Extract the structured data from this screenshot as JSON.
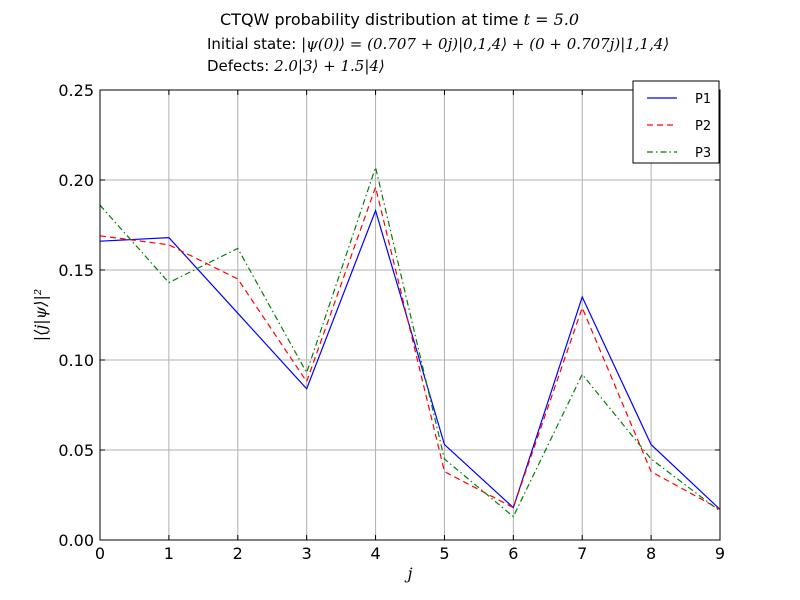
{
  "titles": {
    "main_prefix": "CTQW probability distribution at time ",
    "main_math": "t = 5.0",
    "state_prefix": "Initial state: ",
    "state_math": "|ψ(0)⟩ = (0.707 + 0j)|0,1,4⟩ + (0 + 0.707j)|1,1,4⟩",
    "defects_prefix": "Defects: ",
    "defects_math": "2.0|3⟩ + 1.5|4⟩"
  },
  "chart_data": {
    "type": "line",
    "x": [
      0,
      1,
      2,
      3,
      4,
      5,
      6,
      7,
      8,
      9
    ],
    "xlabel": "j",
    "ylabel": "|⟨j|ψ⟩|²",
    "xlim": [
      0,
      9
    ],
    "ylim": [
      0,
      0.25
    ],
    "xticks": [
      "0",
      "1",
      "2",
      "3",
      "4",
      "5",
      "6",
      "7",
      "8",
      "9"
    ],
    "yticks": [
      "0.00",
      "0.05",
      "0.10",
      "0.15",
      "0.20",
      "0.25"
    ],
    "grid": true,
    "legend_position": "top-right",
    "series": [
      {
        "name": "P1",
        "color": "#0000ff",
        "style": "solid",
        "values": [
          0.166,
          0.168,
          0.126,
          0.084,
          0.183,
          0.053,
          0.018,
          0.135,
          0.053,
          0.017
        ]
      },
      {
        "name": "P2",
        "color": "#ff0000",
        "style": "dashed",
        "values": [
          0.169,
          0.164,
          0.145,
          0.088,
          0.196,
          0.038,
          0.018,
          0.129,
          0.038,
          0.017
        ]
      },
      {
        "name": "P3",
        "color": "#008000",
        "style": "dashdot",
        "values": [
          0.186,
          0.143,
          0.162,
          0.093,
          0.207,
          0.045,
          0.013,
          0.092,
          0.045,
          0.016
        ]
      }
    ]
  }
}
